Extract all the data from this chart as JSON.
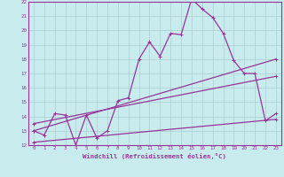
{
  "xlabel": "Windchill (Refroidissement éolien,°C)",
  "background_color": "#c8eced",
  "grid_color": "#aacfcf",
  "line_color": "#993399",
  "xlim": [
    -0.5,
    23.5
  ],
  "ylim": [
    12,
    22
  ],
  "xticks": [
    0,
    1,
    2,
    3,
    4,
    5,
    6,
    7,
    8,
    9,
    10,
    11,
    12,
    13,
    14,
    15,
    16,
    17,
    18,
    19,
    20,
    21,
    22,
    23
  ],
  "yticks": [
    12,
    13,
    14,
    15,
    16,
    17,
    18,
    19,
    20,
    21,
    22
  ],
  "series1_x": [
    0,
    1,
    2,
    3,
    4,
    5,
    6,
    7,
    8,
    9,
    10,
    11,
    12,
    13,
    14,
    15,
    16,
    17,
    18,
    19,
    20,
    21,
    22,
    23
  ],
  "series1_y": [
    13.0,
    12.7,
    14.2,
    14.1,
    12.0,
    14.1,
    12.5,
    13.0,
    15.1,
    15.3,
    18.0,
    19.2,
    18.2,
    19.8,
    19.7,
    22.2,
    21.5,
    20.9,
    19.8,
    17.9,
    17.0,
    17.0,
    13.7,
    14.2
  ],
  "series2_x": [
    0,
    23
  ],
  "series2_y": [
    13.0,
    18.0
  ],
  "series3_x": [
    0,
    23
  ],
  "series3_y": [
    13.5,
    16.8
  ],
  "series4_x": [
    0,
    23
  ],
  "series4_y": [
    12.2,
    13.8
  ],
  "markersize": 3,
  "linewidth": 0.9,
  "tick_fontsize": 4.2,
  "xlabel_fontsize": 5.2
}
